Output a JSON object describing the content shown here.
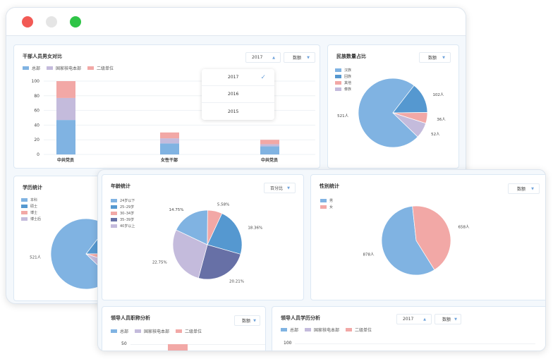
{
  "window": {
    "lights": {
      "close": "#f25a55",
      "min": "#e5e5e5",
      "max": "#2fc447"
    }
  },
  "colors": {
    "c1": "#80b3e2",
    "c2": "#5598d0",
    "c3": "#f2a8a6",
    "c4": "#c4bbdc",
    "c5": "#6770a6"
  },
  "cadre": {
    "title": "干部人员男女对比",
    "year": "2017",
    "mode": "数额",
    "legend": [
      "总部",
      "国家核电本部",
      "二级单位"
    ],
    "dropdown": [
      "2017",
      "2016",
      "2015"
    ],
    "selected": "2017"
  },
  "ethnic": {
    "title": "民族数量占比",
    "mode": "数额",
    "legend": [
      "汉族",
      "回族",
      "其他",
      "傣族"
    ]
  },
  "education": {
    "title": "学历统计",
    "legend": [
      "本科",
      "硕士",
      "博士",
      "博士后"
    ]
  },
  "age": {
    "title": "年龄统计",
    "mode": "百分比",
    "legend": [
      "24岁以下",
      "25–29岁",
      "30–34岁",
      "35–39岁",
      "40岁以上"
    ]
  },
  "gender": {
    "title": "性别统计",
    "mode": "数额",
    "legend": [
      "男",
      "女"
    ]
  },
  "leader_title": {
    "title": "领导人员职称分析",
    "mode": "数额",
    "legend": [
      "总部",
      "国家核电本部",
      "二级单位"
    ],
    "ytick": "50"
  },
  "leader_edu": {
    "title": "领导人员学历分析",
    "year": "2017",
    "mode": "数额",
    "legend": [
      "总部",
      "国家核电本部",
      "二级单位"
    ],
    "ytick": "100"
  },
  "chart_data": [
    {
      "type": "bar",
      "stacked": true,
      "categories": [
        "中共党员",
        "女性干部",
        "中共党员"
      ],
      "ylim": [
        0,
        100
      ],
      "yticks": [
        "0",
        "20",
        "40",
        "60",
        "80",
        "100"
      ],
      "grid": true,
      "legend": "top-left",
      "series": [
        {
          "name": "总部",
          "values": [
            47,
            15,
            11
          ]
        },
        {
          "name": "国家核电本部",
          "values": [
            30,
            7,
            3
          ]
        },
        {
          "name": "二级单位",
          "values": [
            23,
            8,
            6
          ]
        }
      ]
    },
    {
      "type": "pie",
      "categories": [
        "汉族",
        "回族",
        "其他",
        "傣族"
      ],
      "values": [
        521,
        102,
        36,
        52
      ],
      "labels": [
        "521人",
        "102人",
        "36人",
        "52人"
      ]
    },
    {
      "type": "pie",
      "categories": [
        "本科",
        "硕士",
        "博士",
        "博士后"
      ],
      "values": [
        521,
        102,
        36,
        52
      ],
      "labels": [
        "521人"
      ]
    },
    {
      "type": "pie",
      "categories": [
        "24岁以下",
        "25–29岁",
        "30–34岁",
        "35–39岁",
        "40岁以上"
      ],
      "values": [
        14.75,
        18.36,
        5.58,
        20.21,
        22.75
      ],
      "labels": [
        "14.75%",
        "18.36%",
        "5.58%",
        "20.21%",
        "22.75%"
      ]
    },
    {
      "type": "pie",
      "categories": [
        "男",
        "女"
      ],
      "values": [
        878,
        658
      ],
      "labels": [
        "878人",
        "658人"
      ]
    }
  ]
}
